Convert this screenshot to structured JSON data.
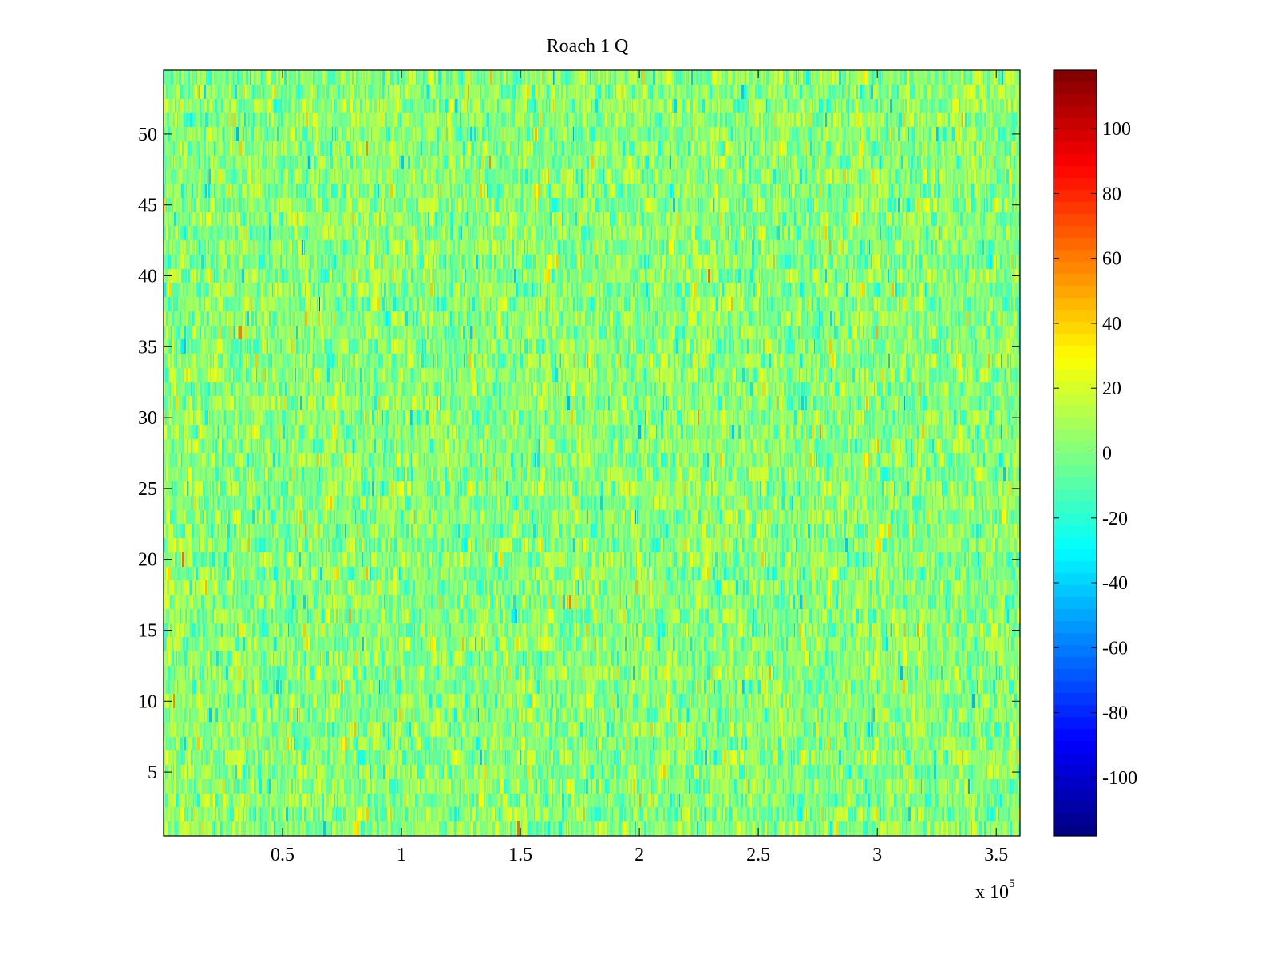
{
  "chart_data": {
    "type": "heatmap",
    "title": "Roach 1 Q",
    "xlabel": "",
    "ylabel": "",
    "x_multiplier_label": "x 10",
    "x_multiplier_exponent": "5",
    "xlim": [
      0,
      360000
    ],
    "ylim": [
      0.5,
      54.5
    ],
    "rows": 54,
    "x_ticks": [
      50000,
      100000,
      150000,
      200000,
      250000,
      300000,
      350000
    ],
    "x_tick_labels": [
      "0.5",
      "1",
      "1.5",
      "2",
      "2.5",
      "3",
      "3.5"
    ],
    "y_ticks": [
      5,
      10,
      15,
      20,
      25,
      30,
      35,
      40,
      45,
      50
    ],
    "y_tick_labels": [
      "5",
      "10",
      "15",
      "20",
      "25",
      "30",
      "35",
      "40",
      "45",
      "50"
    ],
    "colormap": "jet",
    "clim": [
      -118,
      118
    ],
    "colorbar_ticks": [
      -100,
      -80,
      -60,
      -40,
      -20,
      0,
      20,
      40,
      60,
      80,
      100
    ],
    "colorbar_tick_labels": [
      "-100",
      "-80",
      "-60",
      "-40",
      "-20",
      "0",
      "20",
      "40",
      "60",
      "80",
      "100"
    ],
    "value_distribution": {
      "mean": 0,
      "std": 15,
      "note": "noise-like values"
    },
    "colorbar_location": "right"
  }
}
